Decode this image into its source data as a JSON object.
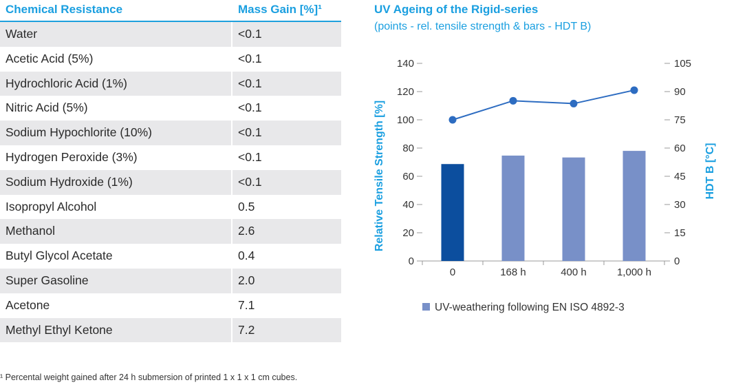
{
  "table": {
    "headers": [
      "Chemical Resistance",
      "Mass Gain [%]¹"
    ],
    "rows": [
      [
        "Water",
        "<0.1"
      ],
      [
        "Acetic Acid (5%)",
        "<0.1"
      ],
      [
        "Hydrochloric Acid (1%)",
        "<0.1"
      ],
      [
        "Nitric Acid (5%)",
        "<0.1"
      ],
      [
        "Sodium Hypochlorite (10%)",
        "<0.1"
      ],
      [
        "Hydrogen Peroxide (3%)",
        "<0.1"
      ],
      [
        "Sodium Hydroxide (1%)",
        "<0.1"
      ],
      [
        "Isopropyl Alcohol",
        "0.5"
      ],
      [
        "Methanol",
        "2.6"
      ],
      [
        "Butyl Glycol Acetate",
        "0.4"
      ],
      [
        "Super Gasoline",
        "2.0"
      ],
      [
        "Acetone",
        "7.1"
      ],
      [
        "Methyl Ethyl Ketone",
        "7.2"
      ]
    ],
    "footnote": "¹ Percental weight gained after 24 h submersion of printed 1 x 1 x 1 cm cubes."
  },
  "chart_data": {
    "type": "bar",
    "title": "UV Ageing of the Rigid-series",
    "subtitle": "(points - rel. tensile strength & bars - HDT B)",
    "categories": [
      "0",
      "168 h",
      "400 h",
      "1,000 h"
    ],
    "ylabel": "Relative Tensile Strength [%]",
    "y2label": "HDT B [°C]",
    "ylim": [
      0,
      140
    ],
    "y2lim": [
      0,
      105
    ],
    "yticks": [
      "0",
      "20",
      "40",
      "60",
      "80",
      "100",
      "120",
      "140"
    ],
    "y2ticks": [
      "0",
      "15",
      "30",
      "45",
      "60",
      "75",
      "90",
      "105"
    ],
    "series": [
      {
        "kind": "bar",
        "axis": "y2",
        "values": [
          51.5,
          56,
          55,
          58.5
        ],
        "colors": [
          "#0c4e9e",
          "#7890c8",
          "#7890c8",
          "#7890c8"
        ]
      },
      {
        "kind": "line",
        "axis": "y",
        "values": [
          100,
          113.5,
          111.5,
          121
        ],
        "color": "#2d6cc1"
      }
    ],
    "legend": {
      "label": "UV-weathering following EN ISO 4892-3",
      "color": "#7890c8",
      "position": "bottom"
    },
    "grid": false,
    "colors": {
      "axis_label": "#1a9fe0",
      "tick": "#333333"
    }
  }
}
